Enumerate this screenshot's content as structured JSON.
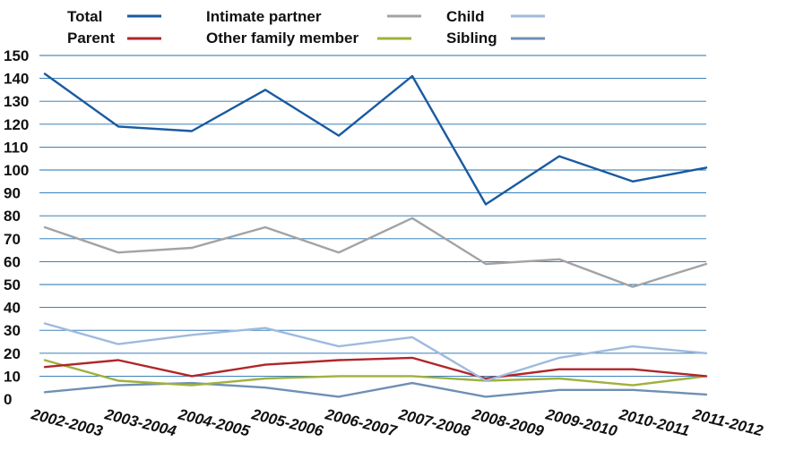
{
  "chart_data": {
    "type": "line",
    "categories": [
      "2002-2003",
      "2003-2004",
      "2004-2005",
      "2005-2006",
      "2006-2007",
      "2007-2008",
      "2008-2009",
      "2009-2010",
      "2010-2011",
      "2011-2012"
    ],
    "ylim": [
      0,
      150
    ],
    "yticks": [
      0,
      10,
      20,
      30,
      40,
      50,
      60,
      70,
      80,
      90,
      100,
      110,
      120,
      130,
      140,
      150
    ],
    "grid": true,
    "legend_position": "top",
    "series": [
      {
        "name": "Total",
        "color": "#1a5aa0",
        "values": [
          142,
          119,
          117,
          135,
          115,
          141,
          85,
          106,
          95,
          101
        ]
      },
      {
        "name": "Intimate partner",
        "color": "#a3a3a3",
        "values": [
          75,
          64,
          66,
          75,
          64,
          79,
          59,
          61,
          49,
          59
        ]
      },
      {
        "name": "Child",
        "color": "#9fbadd",
        "values": [
          33,
          24,
          28,
          31,
          23,
          27,
          8,
          18,
          23,
          20
        ]
      },
      {
        "name": "Parent",
        "color": "#b0262a",
        "values": [
          14,
          17,
          10,
          15,
          17,
          18,
          9,
          13,
          13,
          10
        ]
      },
      {
        "name": "Other family member",
        "color": "#9fb13e",
        "values": [
          17,
          8,
          6,
          9,
          10,
          10,
          8,
          9,
          6,
          10
        ]
      },
      {
        "name": "Sibling",
        "color": "#6f8fb3",
        "values": [
          3,
          6,
          7,
          5,
          1,
          7,
          1,
          4,
          4,
          2
        ]
      }
    ]
  }
}
